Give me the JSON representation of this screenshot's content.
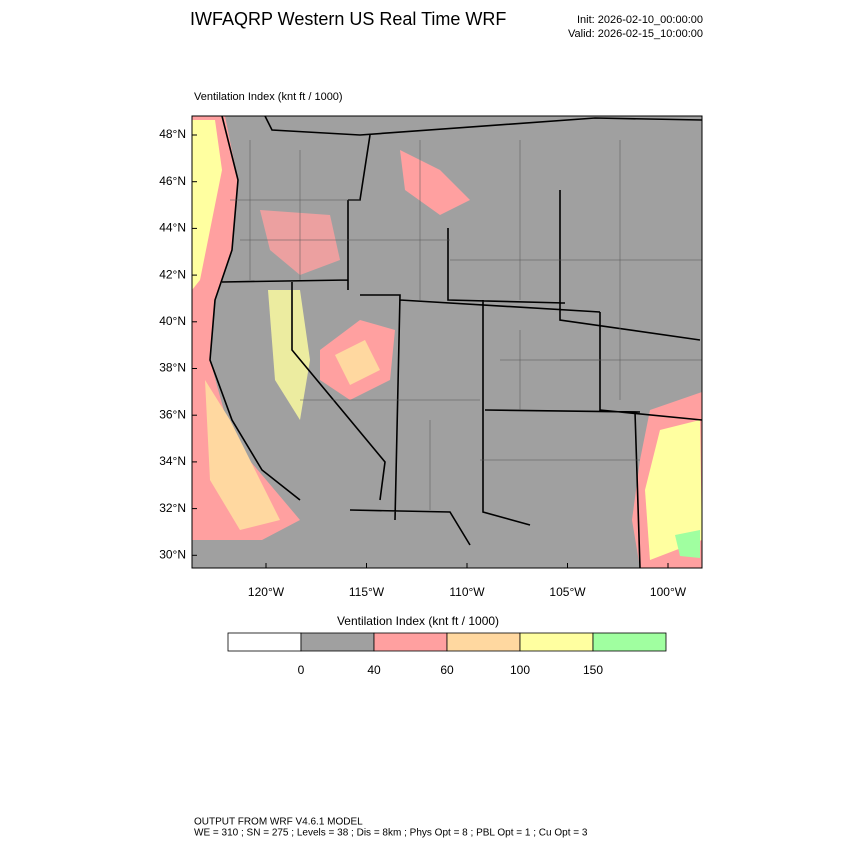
{
  "header": {
    "title": "IWFAQRP Western US Real Time WRF",
    "init": "Init: 2026-02-10_00:00:00",
    "valid": "Valid: 2026-02-15_10:00:00"
  },
  "map": {
    "label": "Ventilation Index   (knt ft / 1000)",
    "lat_labels": [
      "48°N",
      "46°N",
      "44°N",
      "42°N",
      "40°N",
      "38°N",
      "36°N",
      "34°N",
      "32°N",
      "30°N"
    ],
    "lon_labels": [
      "120°W",
      "115°W",
      "110°W",
      "105°W",
      "100°W"
    ]
  },
  "colorbar": {
    "title": "Ventilation Index   (knt ft / 1000)",
    "colors": [
      "#ffffff",
      "#a0a0a0",
      "#ffa0a0",
      "#ffd8a0",
      "#ffffa0",
      "#a0ffa0"
    ],
    "levels": [
      0,
      40,
      60,
      100,
      150
    ]
  },
  "footer": {
    "line1": "OUTPUT FROM WRF V4.6.1 MODEL",
    "line2": "WE = 310 ; SN = 275 ; Levels = 38 ; Dis = 8km ; Phys Opt = 8 ; PBL Opt = 1 ; Cu Opt = 3"
  }
}
